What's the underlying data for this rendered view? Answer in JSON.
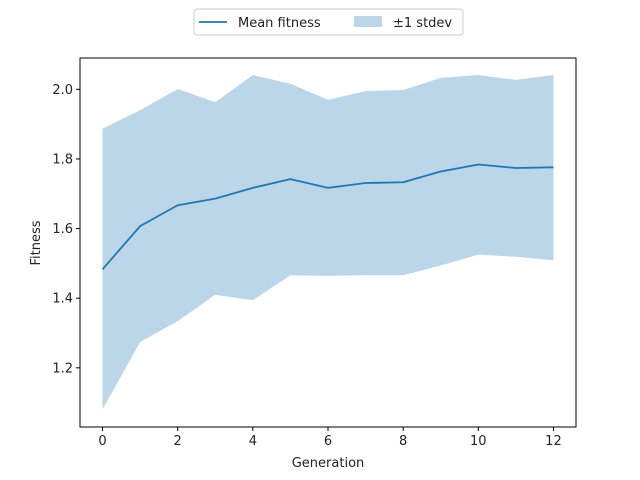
{
  "chart_data": {
    "type": "line",
    "title": "",
    "xlabel": "Generation",
    "ylabel": "Fitness",
    "xlim": [
      -0.6,
      12.6
    ],
    "ylim": [
      1.03,
      2.09
    ],
    "xticks": [
      0,
      2,
      4,
      6,
      8,
      10,
      12
    ],
    "yticks": [
      1.2,
      1.4,
      1.6,
      1.8,
      2.0
    ],
    "xtick_labels": [
      "0",
      "2",
      "4",
      "6",
      "8",
      "10",
      "12"
    ],
    "ytick_labels": [
      "1.2",
      "1.4",
      "1.6",
      "1.8",
      "2.0"
    ],
    "grid": false,
    "legend_placement": "top-center, above plot",
    "x": [
      0,
      1,
      2,
      3,
      4,
      5,
      6,
      7,
      8,
      9,
      10,
      11,
      12
    ],
    "series": [
      {
        "name": "Mean fitness",
        "type": "line",
        "color": "#1f77b4",
        "values": [
          1.483,
          1.607,
          1.667,
          1.686,
          1.717,
          1.742,
          1.717,
          1.731,
          1.733,
          1.764,
          1.784,
          1.774,
          1.776
        ]
      },
      {
        "name": "±1 stdev",
        "type": "area",
        "color": "#1f77b4",
        "opacity": 0.3,
        "upper": [
          1.887,
          1.94,
          2.001,
          1.963,
          2.041,
          2.016,
          1.97,
          1.995,
          1.998,
          2.033,
          2.041,
          2.027,
          2.041
        ],
        "lower": [
          1.081,
          1.274,
          1.334,
          1.41,
          1.394,
          1.466,
          1.464,
          1.466,
          1.466,
          1.494,
          1.525,
          1.519,
          1.509
        ]
      }
    ]
  }
}
